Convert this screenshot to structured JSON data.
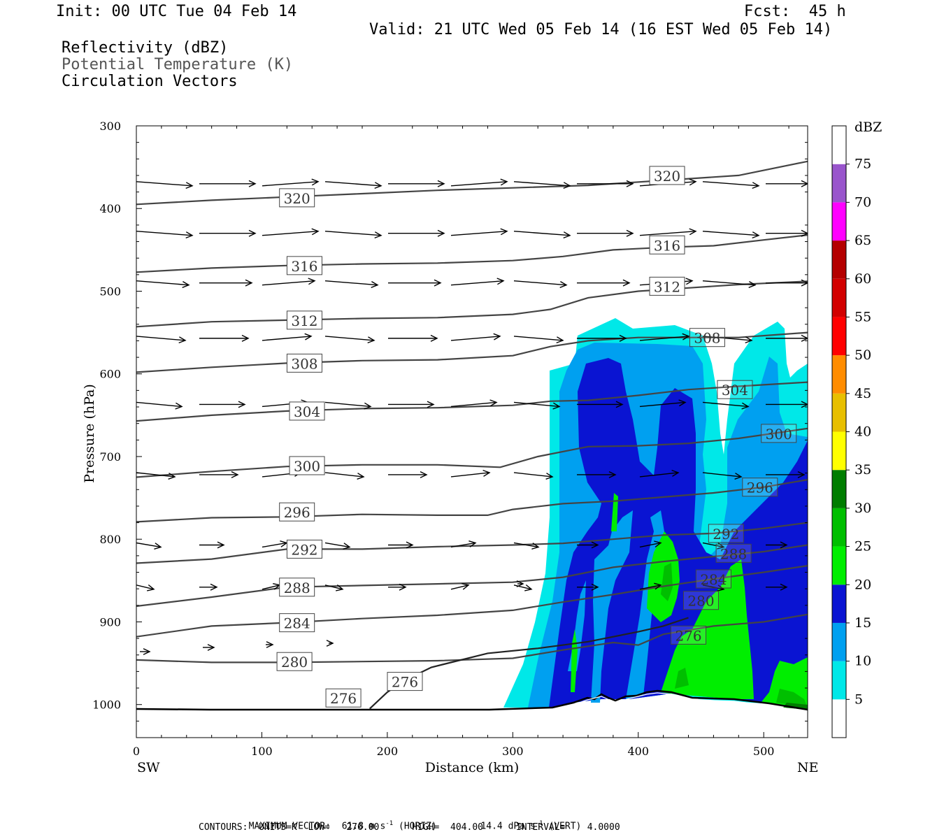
{
  "header": {
    "init": "Init: 00 UTC Tue 04 Feb 14",
    "fcst": "Fcst:  45 h",
    "valid": "Valid: 21 UTC Wed 05 Feb 14 (16 EST Wed 05 Feb 14)",
    "fields": [
      "Reflectivity (dBZ)",
      "Potential Temperature (K)",
      "Circulation Vectors"
    ]
  },
  "footer": {
    "max_vector_label": "MAXIMUM VECTOR:",
    "max_horiz": "61.8 m s",
    "horiz_tag": "(HORIZ)",
    "max_vert": "14.4 dPa s",
    "vert_tag": "(VERT)",
    "contours": "CONTOURS:  UNITS=K  LOW=   276.00      HIGH=  404.00      INTERVAL=    4.0000"
  },
  "chart_data": {
    "type": "cross-section",
    "xlabel": "Distance (km)",
    "ylabel": "Pressure (hPa)",
    "x_left_label": "SW",
    "x_right_label": "NE",
    "xlim": [
      0,
      535
    ],
    "ylim": [
      300,
      1040
    ],
    "x_ticks": [
      0,
      100,
      200,
      300,
      400,
      500
    ],
    "y_ticks": [
      300,
      400,
      500,
      600,
      700,
      800,
      900,
      1000
    ],
    "colorbar": {
      "title": "dBZ",
      "levels": [
        5,
        10,
        15,
        20,
        25,
        30,
        35,
        40,
        45,
        50,
        55,
        60,
        65,
        70,
        75
      ],
      "colors": [
        "#00e8e8",
        "#00a0f0",
        "#0a14d2",
        "#00ee00",
        "#00bf00",
        "#007d00",
        "#ffff00",
        "#e8bf00",
        "#ff8c00",
        "#ff0000",
        "#d20000",
        "#b40000",
        "#ff00ff",
        "#9955cc"
      ]
    },
    "theta_contours": [
      {
        "value": 320,
        "pts": [
          [
            0,
            395
          ],
          [
            60,
            390
          ],
          [
            120,
            386
          ],
          [
            180,
            382
          ],
          [
            240,
            378
          ],
          [
            300,
            375
          ],
          [
            360,
            372
          ],
          [
            420,
            366
          ],
          [
            480,
            360
          ],
          [
            535,
            343
          ]
        ],
        "labels": [
          [
            128,
            387
          ],
          [
            423,
            360
          ]
        ]
      },
      {
        "value": 316,
        "pts": [
          [
            0,
            477
          ],
          [
            60,
            472
          ],
          [
            120,
            469
          ],
          [
            180,
            467
          ],
          [
            240,
            466
          ],
          [
            300,
            463
          ],
          [
            340,
            458
          ],
          [
            380,
            450
          ],
          [
            420,
            447
          ],
          [
            460,
            445
          ],
          [
            500,
            438
          ],
          [
            535,
            432
          ]
        ],
        "labels": [
          [
            134,
            469
          ],
          [
            423,
            444
          ]
        ]
      },
      {
        "value": 312,
        "pts": [
          [
            0,
            543
          ],
          [
            60,
            537
          ],
          [
            120,
            535
          ],
          [
            180,
            533
          ],
          [
            240,
            532
          ],
          [
            300,
            528
          ],
          [
            330,
            522
          ],
          [
            360,
            508
          ],
          [
            400,
            500
          ],
          [
            440,
            496
          ],
          [
            480,
            492
          ],
          [
            535,
            488
          ]
        ],
        "labels": [
          [
            134,
            535
          ],
          [
            423,
            494
          ]
        ]
      },
      {
        "value": 308,
        "pts": [
          [
            0,
            598
          ],
          [
            60,
            592
          ],
          [
            120,
            587
          ],
          [
            180,
            584
          ],
          [
            240,
            583
          ],
          [
            300,
            578
          ],
          [
            330,
            567
          ],
          [
            360,
            560
          ],
          [
            400,
            556
          ],
          [
            440,
            556
          ],
          [
            480,
            556
          ],
          [
            535,
            550
          ]
        ],
        "labels": [
          [
            134,
            587
          ],
          [
            455,
            556
          ]
        ]
      },
      {
        "value": 304,
        "pts": [
          [
            0,
            657
          ],
          [
            60,
            650
          ],
          [
            120,
            645
          ],
          [
            180,
            642
          ],
          [
            240,
            641
          ],
          [
            300,
            638
          ],
          [
            330,
            633
          ],
          [
            360,
            632
          ],
          [
            400,
            626
          ],
          [
            440,
            619
          ],
          [
            480,
            615
          ],
          [
            535,
            610
          ]
        ],
        "labels": [
          [
            136,
            645
          ],
          [
            477,
            619
          ]
        ]
      },
      {
        "value": 300,
        "pts": [
          [
            0,
            725
          ],
          [
            60,
            718
          ],
          [
            120,
            712
          ],
          [
            180,
            710
          ],
          [
            240,
            710
          ],
          [
            290,
            713
          ],
          [
            320,
            700
          ],
          [
            360,
            688
          ],
          [
            400,
            687
          ],
          [
            440,
            684
          ],
          [
            480,
            678
          ],
          [
            535,
            666
          ]
        ],
        "labels": [
          [
            136,
            711
          ],
          [
            512,
            672
          ]
        ]
      },
      {
        "value": 296,
        "pts": [
          [
            0,
            779
          ],
          [
            60,
            774
          ],
          [
            120,
            773
          ],
          [
            180,
            770
          ],
          [
            240,
            771
          ],
          [
            280,
            771
          ],
          [
            300,
            764
          ],
          [
            340,
            757
          ],
          [
            380,
            754
          ],
          [
            420,
            749
          ],
          [
            460,
            744
          ],
          [
            500,
            737
          ],
          [
            535,
            728
          ]
        ],
        "labels": [
          [
            128,
            767
          ],
          [
            497,
            737
          ]
        ]
      },
      {
        "value": 292,
        "pts": [
          [
            0,
            829
          ],
          [
            60,
            824
          ],
          [
            120,
            812
          ],
          [
            180,
            812
          ],
          [
            240,
            809
          ],
          [
            300,
            807
          ],
          [
            340,
            805
          ],
          [
            380,
            800
          ],
          [
            420,
            795
          ],
          [
            460,
            793
          ],
          [
            500,
            787
          ],
          [
            535,
            780
          ]
        ],
        "labels": [
          [
            134,
            812
          ],
          [
            470,
            793
          ]
        ]
      },
      {
        "value": 288,
        "pts": [
          [
            0,
            881
          ],
          [
            60,
            870
          ],
          [
            120,
            858
          ],
          [
            180,
            856
          ],
          [
            240,
            854
          ],
          [
            300,
            852
          ],
          [
            340,
            846
          ],
          [
            380,
            834
          ],
          [
            420,
            827
          ],
          [
            460,
            821
          ],
          [
            500,
            815
          ],
          [
            535,
            807
          ]
        ],
        "labels": [
          [
            128,
            858
          ],
          [
            476,
            817
          ]
        ]
      },
      {
        "value": 284,
        "pts": [
          [
            0,
            918
          ],
          [
            60,
            905
          ],
          [
            120,
            901
          ],
          [
            180,
            896
          ],
          [
            240,
            892
          ],
          [
            300,
            886
          ],
          [
            340,
            876
          ],
          [
            380,
            867
          ],
          [
            420,
            857
          ],
          [
            460,
            848
          ],
          [
            500,
            840
          ],
          [
            535,
            832
          ]
        ],
        "labels": [
          [
            128,
            901
          ],
          [
            460,
            848
          ]
        ]
      },
      {
        "value": 280,
        "pts": [
          [
            0,
            946
          ],
          [
            60,
            949
          ],
          [
            120,
            949
          ],
          [
            180,
            948
          ],
          [
            240,
            947
          ],
          [
            300,
            944
          ],
          [
            340,
            934
          ],
          [
            380,
            925
          ],
          [
            400,
            928
          ],
          [
            420,
            915
          ],
          [
            460,
            905
          ],
          [
            500,
            900
          ],
          [
            535,
            891
          ]
        ],
        "labels": [
          [
            126,
            948
          ],
          [
            450,
            874
          ]
        ]
      },
      {
        "value": 276,
        "pts": [
          [
            186,
            1005
          ],
          [
            200,
            985
          ],
          [
            215,
            970
          ],
          [
            235,
            955
          ],
          [
            280,
            938
          ],
          [
            320,
            932
          ],
          [
            360,
            924
          ],
          [
            400,
            912
          ],
          [
            420,
            905
          ],
          [
            440,
            895
          ]
        ],
        "labels": [
          [
            165,
            992
          ],
          [
            214,
            972
          ],
          [
            440,
            916
          ]
        ]
      }
    ],
    "vector_rows": [
      {
        "p": 370,
        "u": [
          48,
          50,
          48,
          50,
          48,
          50,
          48,
          50,
          48,
          50,
          48,
          50,
          48,
          50,
          48,
          50,
          48,
          50,
          48,
          50,
          48,
          50,
          48
        ],
        "v": [
          0,
          0,
          0,
          0,
          0,
          0,
          0,
          0,
          0,
          0,
          0,
          0,
          0,
          0,
          0,
          0,
          0,
          0,
          0,
          0,
          0,
          0,
          0
        ]
      }
    ]
  }
}
